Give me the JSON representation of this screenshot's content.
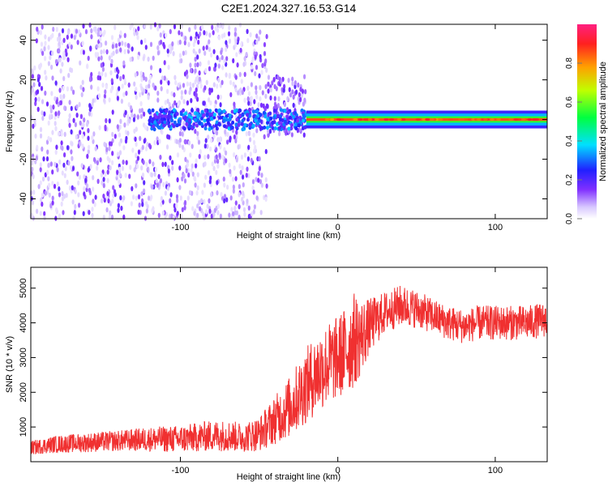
{
  "title": "C2E1.2024.327.16.53.G14",
  "chart_data": [
    {
      "type": "heatmap",
      "xlabel": "Height of straight line (km)",
      "ylabel": "Frequency (Hz)",
      "xlim": [
        -195,
        133
      ],
      "ylim": [
        -50,
        48
      ],
      "xticks": [
        -100,
        0,
        100
      ],
      "yticks": [
        -40,
        -20,
        0,
        20,
        40
      ],
      "x_tick_labels": [
        "-100",
        "0",
        "100"
      ],
      "y_tick_labels": [
        "-40",
        "-20",
        "0",
        "20",
        "40"
      ],
      "grid": false,
      "colorbar": {
        "label": "Normalized spectral amplitude",
        "range": [
          0,
          1
        ],
        "ticks": [
          0.0,
          0.2,
          0.4,
          0.6,
          0.8
        ],
        "tick_labels": [
          "0.0",
          "0.2",
          "0.4",
          "0.6",
          "0.8"
        ]
      },
      "regions": [
        {
          "x": [
            -195,
            -50
          ],
          "freq_spread": 48,
          "amplitude": 0.1
        },
        {
          "x": [
            -50,
            -20
          ],
          "freq_spread": 20,
          "amplitude": 0.15
        },
        {
          "x": [
            -120,
            -20
          ],
          "freq_center": 0,
          "freq_spread": 6,
          "amplitude": 0.3
        },
        {
          "x": [
            -20,
            133
          ],
          "freq_center": 0,
          "freq_spread": 3,
          "amplitude": 0.85
        }
      ]
    },
    {
      "type": "line",
      "xlabel": "Height of straight line (km)",
      "ylabel": "SNR (10 * v/v)",
      "xlim": [
        -195,
        133
      ],
      "ylim": [
        0,
        5600
      ],
      "xticks": [
        -100,
        0,
        100
      ],
      "yticks": [
        1000,
        2000,
        3000,
        4000,
        5000
      ],
      "x_tick_labels": [
        "-100",
        "0",
        "100"
      ],
      "y_tick_labels": [
        "1000",
        "2000",
        "3000",
        "4000",
        "5000"
      ],
      "grid": false,
      "series": [
        {
          "color": "#f03030",
          "x": [
            -195,
            -180,
            -160,
            -140,
            -120,
            -100,
            -90,
            -80,
            -70,
            -60,
            -50,
            -40,
            -30,
            -20,
            -10,
            0,
            5,
            10,
            15,
            20,
            30,
            40,
            50,
            60,
            70,
            80,
            90,
            100,
            110,
            120,
            133
          ],
          "y": [
            400,
            500,
            550,
            600,
            650,
            650,
            700,
            750,
            750,
            700,
            800,
            1200,
            1600,
            2200,
            2700,
            3000,
            3200,
            3500,
            3600,
            3900,
            4300,
            4500,
            4400,
            4200,
            4000,
            3900,
            4000,
            4000,
            4000,
            4000,
            4100
          ],
          "noise": [
            200,
            250,
            280,
            300,
            350,
            400,
            420,
            450,
            450,
            420,
            500,
            700,
            900,
            1100,
            1200,
            1200,
            1300,
            1400,
            1100,
            800,
            600,
            600,
            550,
            500,
            500,
            500,
            500,
            500,
            500,
            500,
            500
          ]
        }
      ]
    }
  ]
}
